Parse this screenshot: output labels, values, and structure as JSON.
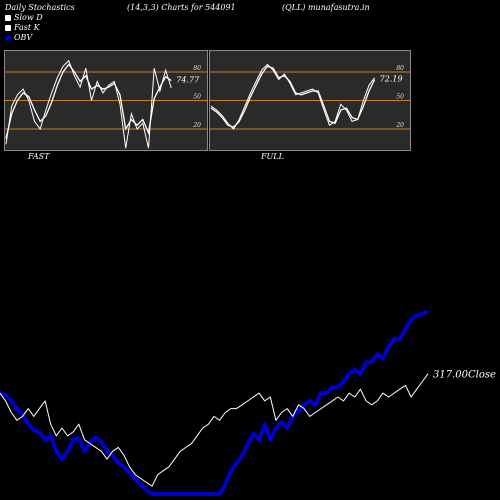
{
  "header": {
    "left": "Daily Stochastics",
    "center": "(14,3,3) Charts for 544091",
    "right": "(QLL) munafasutra.in"
  },
  "legend": [
    {
      "label": "Slow  D",
      "color": "#ffffff"
    },
    {
      "label": "Fast K",
      "color": "#ffffff"
    },
    {
      "label": "OBV",
      "color": "#0000cc"
    }
  ],
  "colors": {
    "background": "#000000",
    "panel_bg": "#2a2a2a",
    "band": "#c8801e",
    "stoch": "#ffffff",
    "obv": "#0000cc",
    "price": "#ffffff"
  },
  "chart_data": [
    {
      "type": "line",
      "title": "FAST",
      "ylim": [
        0,
        100
      ],
      "yticks": [
        20,
        50,
        80
      ],
      "bands": [
        20,
        50,
        80
      ],
      "last_value_label": "74.77",
      "series": [
        {
          "name": "Fast K",
          "values": [
            4,
            44,
            56,
            62,
            50,
            28,
            20,
            40,
            58,
            74,
            86,
            92,
            76,
            64,
            84,
            50,
            70,
            58,
            66,
            70,
            46,
            0,
            36,
            20,
            26,
            0,
            84,
            60,
            82,
            63
          ]
        },
        {
          "name": "Slow  D",
          "values": [
            10,
            36,
            50,
            58,
            54,
            40,
            28,
            34,
            48,
            66,
            80,
            88,
            80,
            70,
            76,
            62,
            66,
            62,
            64,
            68,
            56,
            20,
            30,
            24,
            30,
            16,
            52,
            64,
            75,
            71
          ]
        }
      ]
    },
    {
      "type": "line",
      "title": "FULL",
      "ylim": [
        0,
        100
      ],
      "yticks": [
        20,
        50,
        80
      ],
      "bands": [
        20,
        50,
        80
      ],
      "last_value_label": "72.19",
      "series": [
        {
          "name": "Fast K",
          "values": [
            44,
            40,
            34,
            26,
            20,
            30,
            44,
            58,
            70,
            82,
            88,
            82,
            72,
            78,
            68,
            56,
            58,
            60,
            62,
            58,
            40,
            24,
            28,
            46,
            40,
            28,
            30,
            50,
            66,
            74
          ]
        },
        {
          "name": "Slow  D",
          "values": [
            42,
            38,
            32,
            24,
            22,
            28,
            40,
            54,
            66,
            78,
            86,
            84,
            74,
            76,
            70,
            58,
            56,
            58,
            60,
            60,
            44,
            28,
            26,
            40,
            42,
            32,
            30,
            44,
            60,
            72
          ]
        }
      ]
    },
    {
      "type": "line",
      "last_price_label": "317.00Close",
      "ylim": [
        0,
        100
      ],
      "series": [
        {
          "name": "OBV",
          "values": [
            52,
            51,
            48,
            44,
            41,
            36,
            33,
            32,
            28,
            30,
            22,
            18,
            22,
            28,
            29,
            22,
            27,
            29,
            27,
            22,
            20,
            16,
            14,
            11,
            8,
            5,
            2,
            0,
            0,
            0,
            0,
            0,
            0,
            0,
            0,
            0,
            0,
            0,
            0,
            0,
            5,
            12,
            16,
            20,
            26,
            31,
            28,
            36,
            28,
            34,
            37,
            34,
            40,
            43,
            46,
            48,
            46,
            52,
            52,
            55,
            55,
            58,
            62,
            64,
            62,
            68,
            68,
            72,
            70,
            76,
            80,
            80,
            85,
            90,
            92,
            93,
            94
          ]
        },
        {
          "name": "Close",
          "values": [
            52,
            48,
            42,
            38,
            40,
            44,
            40,
            44,
            48,
            36,
            30,
            34,
            30,
            32,
            36,
            28,
            26,
            24,
            22,
            18,
            22,
            24,
            20,
            14,
            10,
            8,
            6,
            4,
            10,
            12,
            14,
            18,
            22,
            24,
            26,
            30,
            34,
            36,
            40,
            38,
            42,
            44,
            44,
            46,
            48,
            50,
            52,
            48,
            50,
            38,
            42,
            44,
            40,
            46,
            44,
            40,
            42,
            44,
            46,
            48,
            50,
            48,
            52,
            50,
            54,
            48,
            46,
            48,
            52,
            50,
            52,
            54,
            56,
            50,
            54,
            58,
            62
          ]
        }
      ]
    }
  ]
}
